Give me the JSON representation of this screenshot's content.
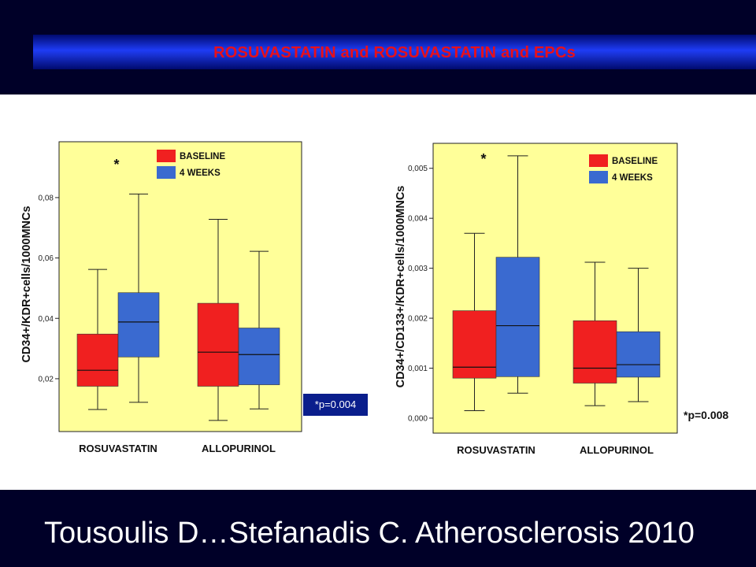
{
  "title": "ROSUVASTATIN and ROSUVASTATIN and EPCs",
  "citation": "Tousoulis D…Stefanadis C. Atherosclerosis 2010",
  "colors": {
    "background": "#000028",
    "title_text": "#e8101a",
    "plot_bg": "#ffff99",
    "baseline": "#f02020",
    "weeks4": "#3a6ad0"
  },
  "chart_data": [
    {
      "type": "box",
      "ylabel": "CD34+/KDR+cells/1000MNCs",
      "categories": [
        "ROSUVASTATIN",
        "ALLOPURINOL"
      ],
      "yticks": [
        "0,02",
        "0,04",
        "0,06",
        "0,08"
      ],
      "ytick_values": [
        0.02,
        0.04,
        0.06,
        0.08
      ],
      "ylim": [
        0.0025,
        0.0985
      ],
      "legend": {
        "position": "top-right",
        "entries": [
          "BASELINE",
          "4 WEEKS"
        ]
      },
      "series": [
        {
          "name": "BASELINE",
          "boxes": [
            {
              "min": 0.0098,
              "q1": 0.0175,
              "median": 0.0228,
              "q3": 0.0348,
              "max": 0.0562
            },
            {
              "min": 0.0062,
              "q1": 0.0175,
              "median": 0.0288,
              "q3": 0.045,
              "max": 0.0728
            }
          ]
        },
        {
          "name": "4 WEEKS",
          "boxes": [
            {
              "min": 0.0122,
              "q1": 0.0272,
              "median": 0.0388,
              "q3": 0.0485,
              "max": 0.0812
            },
            {
              "min": 0.01,
              "q1": 0.018,
              "median": 0.028,
              "q3": 0.0368,
              "max": 0.0622
            }
          ]
        }
      ],
      "annotation": "*",
      "pvalue": "*p=0.004"
    },
    {
      "type": "box",
      "ylabel": "CD34+/CD133+/KDR+cells/1000MNCs",
      "categories": [
        "ROSUVASTATIN",
        "ALLOPURINOL"
      ],
      "yticks": [
        "0,000",
        "0,001",
        "0,002",
        "0,003",
        "0,004",
        "0,005"
      ],
      "ytick_values": [
        0,
        0.001,
        0.002,
        0.003,
        0.004,
        0.005
      ],
      "ylim": [
        -0.0003,
        0.0055
      ],
      "legend": {
        "position": "top-right",
        "entries": [
          "BASELINE",
          "4 WEEKS"
        ]
      },
      "series": [
        {
          "name": "BASELINE",
          "boxes": [
            {
              "min": 0.00015,
              "q1": 0.0008,
              "median": 0.00102,
              "q3": 0.00215,
              "max": 0.0037
            },
            {
              "min": 0.00025,
              "q1": 0.0007,
              "median": 0.001,
              "q3": 0.00195,
              "max": 0.00312
            }
          ]
        },
        {
          "name": "4 WEEKS",
          "boxes": [
            {
              "min": 0.0005,
              "q1": 0.00083,
              "median": 0.00185,
              "q3": 0.00322,
              "max": 0.00525
            },
            {
              "min": 0.00033,
              "q1": 0.00082,
              "median": 0.00107,
              "q3": 0.00173,
              "max": 0.003
            }
          ]
        }
      ],
      "annotation": "*",
      "pvalue": "*p=0.008"
    }
  ]
}
